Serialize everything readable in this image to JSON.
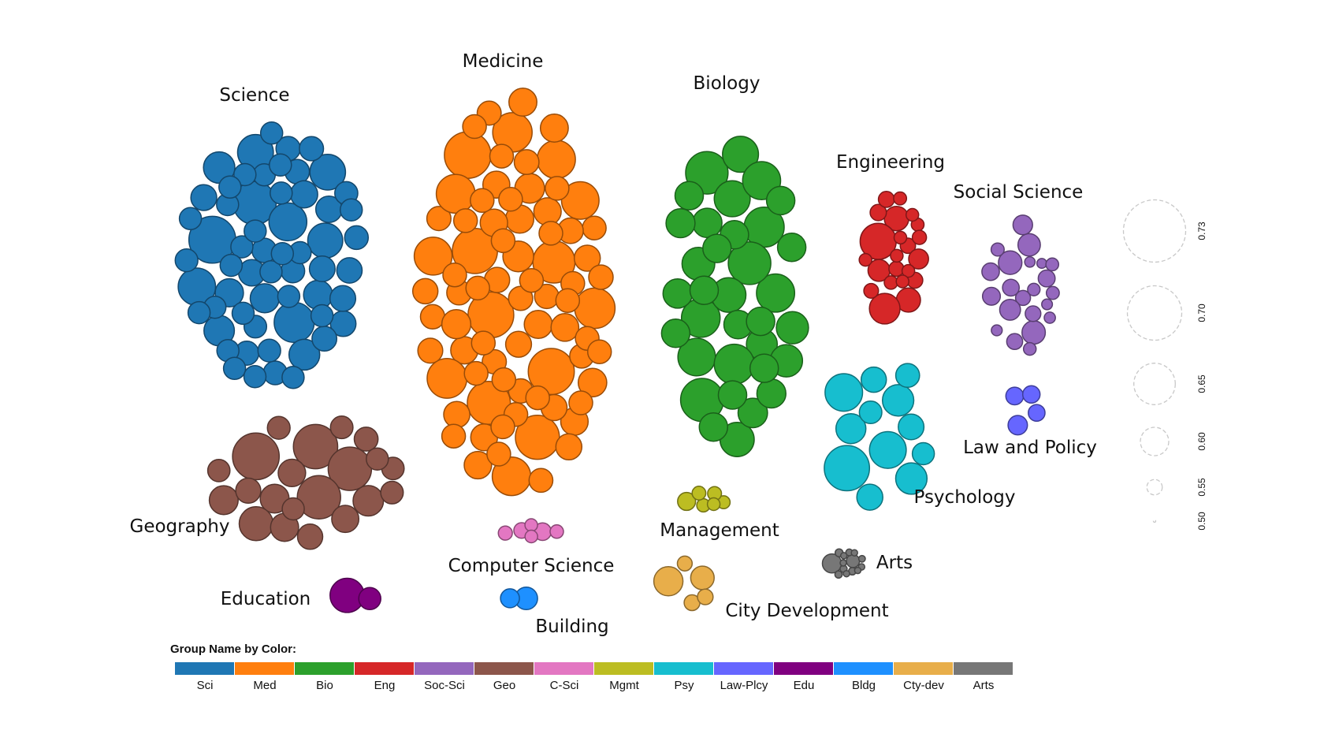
{
  "chart_data": {
    "type": "bubble-cluster",
    "title": "",
    "groups": [
      {
        "key": "sci",
        "label": "Science",
        "short": "Sci",
        "color": "#1f77b4",
        "count": 62
      },
      {
        "key": "med",
        "label": "Medicine",
        "short": "Med",
        "color": "#ff7f0e",
        "count": 80
      },
      {
        "key": "bio",
        "label": "Biology",
        "short": "Bio",
        "color": "#2ca02c",
        "count": 34
      },
      {
        "key": "eng",
        "label": "Engineering",
        "short": "Eng",
        "color": "#d62728",
        "count": 22
      },
      {
        "key": "soc",
        "label": "Social Science",
        "short": "Soc-Sci",
        "color": "#9467bd",
        "count": 22
      },
      {
        "key": "geo",
        "label": "Geography",
        "short": "Geo",
        "color": "#8c564b",
        "count": 21
      },
      {
        "key": "csci",
        "label": "Computer Science",
        "short": "C-Sci",
        "color": "#e377c2",
        "count": 8
      },
      {
        "key": "mgmt",
        "label": "Management",
        "short": "Mgmt",
        "color": "#bcbd22",
        "count": 6
      },
      {
        "key": "psy",
        "label": "Psychology",
        "short": "Psy",
        "color": "#17becf",
        "count": 12
      },
      {
        "key": "law",
        "label": "Law and Policy",
        "short": "Law-Plcy",
        "color": "#6666ff",
        "count": 4
      },
      {
        "key": "edu",
        "label": "Education",
        "short": "Edu",
        "color": "#800080",
        "count": 2
      },
      {
        "key": "bldg",
        "label": "Building",
        "short": "Bldg",
        "color": "#1e90ff",
        "count": 2
      },
      {
        "key": "city",
        "label": "City Development",
        "short": "Cty-dev",
        "color": "#e8ae4a",
        "count": 5
      },
      {
        "key": "arts",
        "label": "Arts",
        "short": "Arts",
        "color": "#777777",
        "count": 14
      }
    ],
    "size_legend": [
      0.73,
      0.7,
      0.65,
      0.6,
      0.55,
      0.5
    ],
    "legend_title": "Group Name by Color:"
  }
}
